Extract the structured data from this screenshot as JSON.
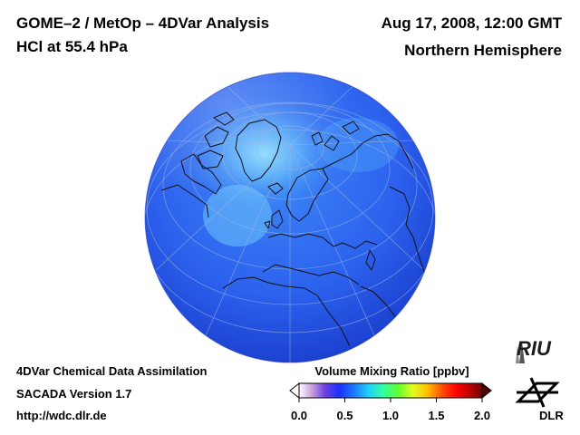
{
  "header": {
    "title_line1": "GOME–2 / MetOp – 4DVar Analysis",
    "title_line2": "HCl at 55.4 hPa",
    "date": "Aug 17, 2008, 12:00 GMT",
    "region": "Northern Hemisphere"
  },
  "footer": {
    "line1": "4DVar Chemical Data Assimilation",
    "line2": "SACADA Version 1.7",
    "line3": "http://wdc.dlr.de"
  },
  "colorbar": {
    "title": "Volume Mixing Ratio [ppbv]",
    "min": 0.0,
    "max": 2.0,
    "ticks": [
      "0.0",
      "0.5",
      "1.0",
      "1.5",
      "2.0"
    ],
    "tick_values": [
      0.0,
      0.5,
      1.0,
      1.5,
      2.0
    ],
    "colors": [
      "#ffffff",
      "#c8a0e0",
      "#7040e0",
      "#1830ff",
      "#1e78ff",
      "#20d0ff",
      "#30ffa0",
      "#60ff30",
      "#e0ff20",
      "#ffc000",
      "#ff5000",
      "#ff0000",
      "#c00000",
      "#700000"
    ]
  },
  "map": {
    "projection": "orthographic",
    "hemisphere": "Northern Hemisphere",
    "field_colors": {
      "base": "#2a62f0",
      "polar_high": "#7ad0ff",
      "mid": "#3c8cf8",
      "rim": "#1636c8"
    }
  },
  "logos": {
    "riu": "RIU",
    "dlr": "DLR"
  }
}
